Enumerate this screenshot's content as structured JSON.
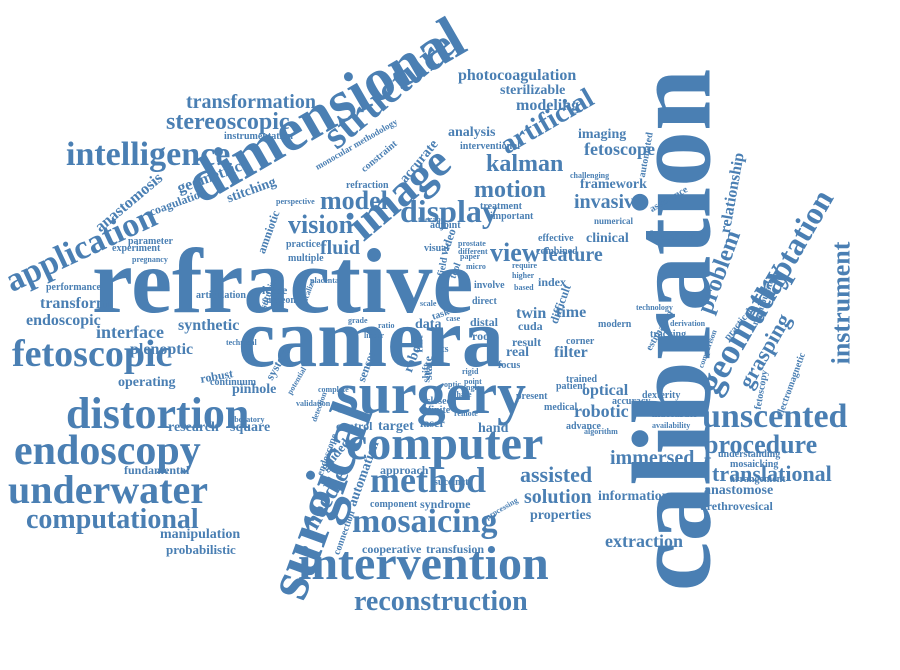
{
  "accent_color": "#4a7fb3",
  "words": [
    {
      "text": "calibration"
    },
    {
      "text": "refractive"
    },
    {
      "text": "camera"
    },
    {
      "text": "dimensional"
    },
    {
      "text": "surgical"
    },
    {
      "text": "surgery"
    },
    {
      "text": "intervention"
    },
    {
      "text": "computer"
    },
    {
      "text": "distortion"
    },
    {
      "text": "endoscopy"
    },
    {
      "text": "underwater"
    },
    {
      "text": "fetoscopic"
    },
    {
      "text": "application"
    },
    {
      "text": "intelligence"
    },
    {
      "text": "mosaicing"
    },
    {
      "text": "method"
    },
    {
      "text": "computational"
    },
    {
      "text": "image"
    },
    {
      "text": "structure"
    },
    {
      "text": "display"
    },
    {
      "text": "unscented"
    },
    {
      "text": "reconstruction"
    },
    {
      "text": "geometry"
    },
    {
      "text": "instrument"
    },
    {
      "text": "adaptation"
    },
    {
      "text": "procedure"
    },
    {
      "text": "stereoscopic"
    },
    {
      "text": "transformation"
    },
    {
      "text": "motion"
    },
    {
      "text": "kalman"
    },
    {
      "text": "artificial"
    },
    {
      "text": "vision"
    },
    {
      "text": "model"
    },
    {
      "text": "view"
    },
    {
      "text": "problem"
    },
    {
      "text": "translational"
    },
    {
      "text": "immersed"
    },
    {
      "text": "grasping"
    },
    {
      "text": "relationship"
    },
    {
      "text": "assisted"
    },
    {
      "text": "solution"
    },
    {
      "text": "extraction"
    },
    {
      "text": "fluid"
    },
    {
      "text": "feature"
    },
    {
      "text": "invasive"
    },
    {
      "text": "fetoscope"
    },
    {
      "text": "photocoagulation"
    },
    {
      "text": "modeling"
    },
    {
      "text": "sterilizable"
    },
    {
      "text": "imaging"
    },
    {
      "text": "framework"
    },
    {
      "text": "detector"
    },
    {
      "text": "clinical"
    },
    {
      "text": "analysis"
    },
    {
      "text": "geometric"
    },
    {
      "text": "anastomosis"
    },
    {
      "text": "coagulation"
    },
    {
      "text": "endoscopic"
    },
    {
      "text": "transform"
    },
    {
      "text": "interface"
    },
    {
      "text": "plenoptic"
    },
    {
      "text": "synthetic"
    },
    {
      "text": "operating"
    },
    {
      "text": "pinhole"
    },
    {
      "text": "research"
    },
    {
      "text": "square"
    },
    {
      "text": "fundamental"
    },
    {
      "text": "manipulation"
    },
    {
      "text": "probabilistic"
    },
    {
      "text": "needle"
    },
    {
      "text": "automation"
    },
    {
      "text": "guided"
    },
    {
      "text": "approach"
    },
    {
      "text": "syndrome"
    },
    {
      "text": "cooperative"
    },
    {
      "text": "transfusion"
    },
    {
      "text": "hand"
    },
    {
      "text": "control"
    },
    {
      "text": "target"
    },
    {
      "text": "laser"
    },
    {
      "text": "real"
    },
    {
      "text": "filter"
    },
    {
      "text": "optical"
    },
    {
      "text": "robotic"
    },
    {
      "text": "data"
    },
    {
      "text": "twin"
    },
    {
      "text": "time"
    },
    {
      "text": "information"
    },
    {
      "text": "properties"
    },
    {
      "text": "anastomose"
    },
    {
      "text": "urethrovesical"
    },
    {
      "text": "stitching"
    },
    {
      "text": "performance"
    },
    {
      "text": "experiment"
    },
    {
      "text": "parameter"
    },
    {
      "text": "instrumentation"
    },
    {
      "text": "lense"
    },
    {
      "text": "surgeon"
    },
    {
      "text": "amniotic"
    },
    {
      "text": "system"
    },
    {
      "text": "robust"
    },
    {
      "text": "continuum"
    },
    {
      "text": "articulation"
    },
    {
      "text": "refraction"
    },
    {
      "text": "practice"
    },
    {
      "text": "multiple"
    },
    {
      "text": "adjoint"
    },
    {
      "text": "visual"
    },
    {
      "text": "video"
    },
    {
      "text": "accurate"
    },
    {
      "text": "constraint"
    },
    {
      "text": "monocular methodology"
    },
    {
      "text": "effective"
    },
    {
      "text": "combined"
    },
    {
      "text": "numerical"
    },
    {
      "text": "challenging"
    },
    {
      "text": "treatment"
    },
    {
      "text": "interventional"
    },
    {
      "text": "automated"
    },
    {
      "text": "assistance"
    },
    {
      "text": "important"
    },
    {
      "text": "accuracy"
    },
    {
      "text": "room"
    },
    {
      "text": "distal"
    },
    {
      "text": "root"
    },
    {
      "text": "cuda"
    },
    {
      "text": "result"
    },
    {
      "text": "index"
    },
    {
      "text": "involve"
    },
    {
      "text": "direct"
    },
    {
      "text": "difficult"
    },
    {
      "text": "modern"
    },
    {
      "text": "technology"
    },
    {
      "text": "estimation"
    },
    {
      "text": "corner"
    },
    {
      "text": "dexterity"
    },
    {
      "text": "advance"
    },
    {
      "text": "medical"
    },
    {
      "text": "patient"
    },
    {
      "text": "present"
    },
    {
      "text": "succinct"
    },
    {
      "text": "component"
    },
    {
      "text": "connection"
    },
    {
      "text": "tracking"
    },
    {
      "text": "derivation"
    },
    {
      "text": "practical"
    },
    {
      "text": "fetoscopy"
    },
    {
      "text": "electromagnetic"
    },
    {
      "text": "mosaicking"
    },
    {
      "text": "arrangement"
    },
    {
      "text": "understanding"
    },
    {
      "text": "inaccurate"
    },
    {
      "text": "availability"
    },
    {
      "text": "manipulator"
    },
    {
      "text": "comparison"
    },
    {
      "text": "trained"
    },
    {
      "text": "focus"
    },
    {
      "text": "task"
    },
    {
      "text": "state"
    },
    {
      "text": "tts"
    },
    {
      "text": "flat"
    },
    {
      "text": "robot"
    },
    {
      "text": "sensor"
    },
    {
      "text": "field"
    },
    {
      "text": "tool"
    },
    {
      "text": "paper"
    },
    {
      "text": "micro"
    },
    {
      "text": "based"
    },
    {
      "text": "higher"
    },
    {
      "text": "require"
    },
    {
      "text": "prostate"
    },
    {
      "text": "different"
    },
    {
      "text": "therapy"
    },
    {
      "text": "placenta"
    },
    {
      "text": "technical"
    },
    {
      "text": "potential"
    },
    {
      "text": "laboratory"
    },
    {
      "text": "validation"
    },
    {
      "text": "pregnancy"
    },
    {
      "text": "perspective"
    },
    {
      "text": "endoscope"
    },
    {
      "text": "processing"
    },
    {
      "text": "optic"
    },
    {
      "text": "algorithm"
    },
    {
      "text": "remote"
    },
    {
      "text": "phase"
    },
    {
      "text": "linear"
    },
    {
      "text": "case"
    },
    {
      "text": "ratio"
    },
    {
      "text": "rigid"
    },
    {
      "text": "shift"
    },
    {
      "text": "scale"
    },
    {
      "text": "closed"
    },
    {
      "text": "finite"
    },
    {
      "text": "point"
    },
    {
      "text": "angle"
    },
    {
      "text": "grade"
    },
    {
      "text": "suturing"
    },
    {
      "text": "localize"
    },
    {
      "text": "complete"
    },
    {
      "text": "detection"
    }
  ]
}
